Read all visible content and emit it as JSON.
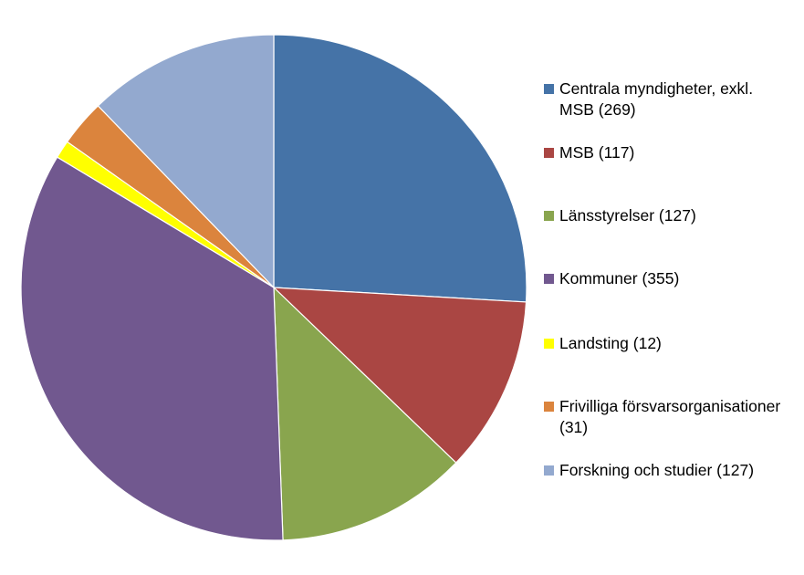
{
  "chart_data": {
    "type": "pie",
    "title": "",
    "categories": [
      "Centrala myndigheter, exkl. MSB (269)",
      "MSB (117)",
      "Länsstyrelser (127)",
      "Kommuner (355)",
      "Landsting (12)",
      "Frivilliga försvarsorganisationer (31)",
      "Forskning och studier (127)"
    ],
    "values": [
      269,
      117,
      127,
      355,
      12,
      31,
      127
    ],
    "colors": [
      "#4573A7",
      "#AA4643",
      "#89A54E",
      "#71588F",
      "#FFFF00",
      "#DB843D",
      "#93A9CF"
    ],
    "legend_position": "right"
  },
  "legend": {
    "items": [
      {
        "label": "Centrala myndigheter, exkl. MSB (269)",
        "color": "#4573A7"
      },
      {
        "label": "MSB (117)",
        "color": "#AA4643"
      },
      {
        "label": "Länsstyrelser (127)",
        "color": "#89A54E"
      },
      {
        "label": "Kommuner (355)",
        "color": "#71588F"
      },
      {
        "label": "Landsting (12)",
        "color": "#FFFF00"
      },
      {
        "label": "Frivilliga försvarsorganisationer (31)",
        "color": "#DB843D"
      },
      {
        "label": "Forskning och studier (127)",
        "color": "#93A9CF"
      }
    ]
  }
}
